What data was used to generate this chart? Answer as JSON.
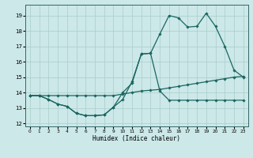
{
  "xlabel": "Humidex (Indice chaleur)",
  "bg_color": "#cce8e8",
  "grid_color": "#aacccc",
  "line_color": "#1a6660",
  "xlim": [
    -0.5,
    23.5
  ],
  "ylim": [
    11.8,
    19.7
  ],
  "yticks": [
    12,
    13,
    14,
    15,
    16,
    17,
    18,
    19
  ],
  "xticks": [
    0,
    1,
    2,
    3,
    4,
    5,
    6,
    7,
    8,
    9,
    10,
    11,
    12,
    13,
    14,
    15,
    16,
    17,
    18,
    19,
    20,
    21,
    22,
    23
  ],
  "line_zigzag_x": [
    0,
    1,
    2,
    3,
    4,
    5,
    6,
    7,
    8,
    9,
    10,
    11,
    12,
    13,
    14,
    15,
    16,
    17,
    18,
    19,
    20,
    21,
    22,
    23
  ],
  "line_zigzag_y": [
    13.8,
    13.8,
    13.55,
    13.25,
    13.1,
    12.65,
    12.5,
    12.5,
    12.55,
    13.05,
    14.0,
    14.6,
    16.5,
    16.55,
    17.8,
    19.0,
    18.85,
    18.25,
    18.3,
    19.15,
    18.3,
    17.0,
    15.45,
    15.0
  ],
  "line_straight_x": [
    0,
    1,
    2,
    3,
    4,
    5,
    6,
    7,
    8,
    9,
    10,
    11,
    12,
    13,
    14,
    15,
    16,
    17,
    18,
    19,
    20,
    21,
    22,
    23
  ],
  "line_straight_y": [
    13.8,
    13.8,
    13.8,
    13.8,
    13.8,
    13.8,
    13.8,
    13.8,
    13.8,
    13.8,
    13.9,
    14.0,
    14.1,
    14.15,
    14.2,
    14.3,
    14.4,
    14.5,
    14.6,
    14.7,
    14.8,
    14.9,
    15.0,
    15.05
  ],
  "line_curve_x": [
    0,
    1,
    2,
    3,
    4,
    5,
    6,
    7,
    8,
    9,
    10,
    11,
    12,
    13,
    14,
    15,
    16,
    17,
    18,
    19,
    20,
    21,
    22,
    23
  ],
  "line_curve_y": [
    13.8,
    13.8,
    13.55,
    13.25,
    13.1,
    12.65,
    12.5,
    12.5,
    12.55,
    13.05,
    13.55,
    14.7,
    16.5,
    16.55,
    14.1,
    13.5,
    13.5,
    13.5,
    13.5,
    13.5,
    13.5,
    13.5,
    13.5,
    13.5
  ]
}
